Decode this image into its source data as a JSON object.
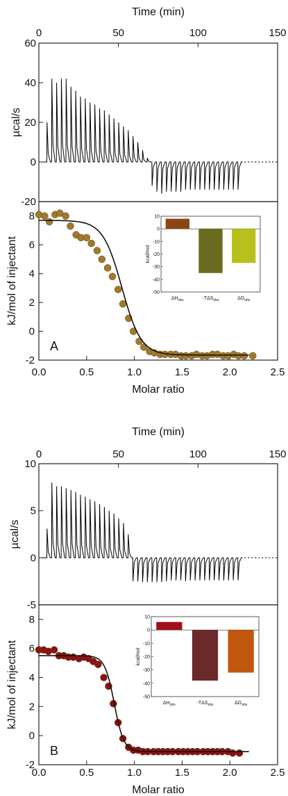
{
  "chart_data": [
    {
      "panel_label": "A",
      "thermogram": {
        "type": "line",
        "xlabel": "Time (min)",
        "ylabel": "µcal/s",
        "xlim": [
          0,
          150
        ],
        "ylim": [
          -20,
          60
        ],
        "xticks": [
          "0",
          "50",
          "100",
          "150"
        ],
        "yticks": [
          "-20",
          "0",
          "20",
          "40",
          "60"
        ],
        "injection_times_min": [
          5.0,
          8.0,
          11.0,
          14.0,
          17.0,
          20.0,
          23.0,
          26.0,
          29.0,
          32.0,
          35.0,
          38.0,
          41.0,
          44.0,
          47.0,
          50.0,
          53.0,
          56.0,
          59.0,
          62.0,
          65.0,
          68.0,
          71.0,
          74.0,
          77.0,
          80.0,
          83.0,
          86.0,
          89.0,
          92.0,
          95.0,
          98.0,
          101.0,
          104.0,
          107.0,
          110.0,
          113.0,
          116.0,
          119.0,
          122.0,
          125.0
        ],
        "peak_ucal_s": [
          20,
          42,
          40,
          42,
          42,
          38,
          36,
          33,
          32,
          30,
          29,
          27,
          26,
          24,
          22,
          20,
          18,
          16,
          13,
          10,
          6,
          2,
          -12,
          -15,
          -16,
          -15,
          -15,
          -15,
          -15,
          -14,
          -14,
          -14,
          -14,
          -14,
          -14,
          -14,
          -14,
          -14,
          -14,
          -14,
          -14
        ],
        "baseline": 0
      },
      "binding": {
        "type": "scatter",
        "xlabel": "Molar ratio",
        "ylabel": "kJ/mol of injectant",
        "xlim": [
          0.0,
          2.5
        ],
        "ylim": [
          -2,
          9
        ],
        "xticks": [
          "0.0",
          "0.5",
          "1.0",
          "1.5",
          "2.0",
          "2.5"
        ],
        "yticks": [
          "-2",
          "0",
          "2",
          "4",
          "6",
          "8"
        ],
        "marker_color": "#a07a2c",
        "x": [
          0.0,
          0.06,
          0.11,
          0.17,
          0.22,
          0.28,
          0.33,
          0.39,
          0.44,
          0.5,
          0.55,
          0.61,
          0.66,
          0.72,
          0.77,
          0.83,
          0.88,
          0.94,
          0.99,
          1.05,
          1.1,
          1.16,
          1.21,
          1.27,
          1.32,
          1.38,
          1.43,
          1.49,
          1.54,
          1.6,
          1.65,
          1.71,
          1.76,
          1.82,
          1.87,
          1.93,
          1.98,
          2.04,
          2.09,
          2.15,
          2.24
        ],
        "y": [
          8.1,
          8.0,
          7.6,
          8.1,
          8.2,
          8.0,
          7.3,
          6.7,
          6.5,
          6.5,
          6.1,
          5.6,
          5.0,
          4.4,
          3.8,
          2.9,
          1.9,
          0.9,
          0.0,
          -0.7,
          -1.1,
          -1.4,
          -1.5,
          -1.6,
          -1.6,
          -1.6,
          -1.6,
          -1.7,
          -1.7,
          -1.7,
          -1.6,
          -1.7,
          -1.7,
          -1.6,
          -1.6,
          -1.7,
          -1.7,
          -1.6,
          -1.7,
          -1.7,
          -1.7
        ],
        "fit": {
          "high": 7.7,
          "low": -1.65,
          "midpoint": 0.87,
          "width": 0.1
        }
      },
      "inset": {
        "type": "bar",
        "ylabel": "kcal/mol",
        "ylim": [
          -50,
          10
        ],
        "yticks": [
          "10",
          "0",
          "-10",
          "-20",
          "-30",
          "-40",
          "-50"
        ],
        "categories": [
          "ΔH",
          "-TΔS",
          "ΔG"
        ],
        "subscripts": [
          "obs",
          "obs",
          "obs"
        ],
        "values": [
          8,
          -35,
          -27
        ],
        "colors": [
          "#8b4513",
          "#6b6b1f",
          "#b8c01c"
        ]
      }
    },
    {
      "panel_label": "B",
      "thermogram": {
        "type": "line",
        "xlabel": "Time (min)",
        "ylabel": "µcal/s",
        "xlim": [
          0,
          150
        ],
        "ylim": [
          -5,
          10
        ],
        "xticks": [
          "0",
          "50",
          "100",
          "150"
        ],
        "yticks": [
          "-5",
          "0",
          "5",
          "10"
        ],
        "injection_times_min": [
          5.0,
          8.0,
          11.0,
          14.0,
          17.0,
          20.0,
          23.0,
          26.0,
          29.0,
          32.0,
          35.0,
          38.0,
          41.0,
          44.0,
          47.0,
          50.0,
          53.0,
          56.0,
          59.0,
          62.0,
          65.0,
          68.0,
          71.0,
          74.0,
          77.0,
          80.0,
          83.0,
          86.0,
          89.0,
          92.0,
          95.0,
          98.0,
          101.0,
          104.0,
          107.0,
          110.0,
          113.0,
          116.0,
          119.0,
          122.0,
          125.0
        ],
        "peak_ucal_s": [
          3.1,
          8.0,
          7.6,
          7.6,
          7.4,
          7.2,
          7.0,
          6.7,
          6.5,
          6.2,
          6.0,
          5.7,
          5.4,
          5.0,
          4.7,
          4.2,
          3.7,
          2.5,
          -2.5,
          -2.5,
          -2.6,
          -2.6,
          -2.6,
          -2.6,
          -2.6,
          -2.5,
          -2.4,
          -2.4,
          -2.4,
          -2.5,
          -2.4,
          -2.4,
          -2.4,
          -2.4,
          -2.4,
          -2.4,
          -2.4,
          -2.4,
          -2.4,
          -2.4,
          -2.4
        ],
        "baseline": 0
      },
      "binding": {
        "type": "scatter",
        "xlabel": "Molar ratio",
        "ylabel": "kJ/mol of injectant",
        "xlim": [
          0.0,
          2.5
        ],
        "ylim": [
          -2,
          9
        ],
        "xticks": [
          "0.0",
          "0.5",
          "1.0",
          "1.5",
          "2.0",
          "2.5"
        ],
        "yticks": [
          "-2",
          "0",
          "2",
          "4",
          "6",
          "8"
        ],
        "marker_color": "#8b1212",
        "x": [
          0.0,
          0.05,
          0.1,
          0.16,
          0.21,
          0.26,
          0.31,
          0.36,
          0.42,
          0.47,
          0.52,
          0.57,
          0.62,
          0.68,
          0.73,
          0.78,
          0.83,
          0.88,
          0.94,
          0.99,
          1.04,
          1.09,
          1.14,
          1.2,
          1.25,
          1.3,
          1.35,
          1.4,
          1.46,
          1.51,
          1.56,
          1.61,
          1.66,
          1.72,
          1.77,
          1.82,
          1.87,
          1.92,
          1.98,
          2.03,
          2.1
        ],
        "y": [
          5.9,
          5.9,
          5.8,
          5.9,
          5.5,
          5.5,
          5.4,
          5.4,
          5.3,
          5.4,
          5.3,
          5.1,
          4.9,
          4.0,
          3.4,
          2.2,
          0.9,
          -0.2,
          -0.8,
          -1.0,
          -1.0,
          -1.1,
          -1.1,
          -1.1,
          -1.1,
          -1.1,
          -1.1,
          -1.1,
          -1.1,
          -1.1,
          -1.1,
          -1.1,
          -1.1,
          -1.1,
          -1.1,
          -1.1,
          -1.1,
          -1.1,
          -1.1,
          -1.2,
          -1.2
        ],
        "fit": {
          "high": 5.5,
          "low": -1.1,
          "midpoint": 0.79,
          "width": 0.05
        }
      },
      "inset": {
        "type": "bar",
        "ylabel": "kcal/mol",
        "ylim": [
          -50,
          10
        ],
        "yticks": [
          "10",
          "0",
          "-10",
          "-20",
          "-30",
          "-40",
          "-50"
        ],
        "categories": [
          "ΔH",
          "-TΔS",
          "ΔG"
        ],
        "subscripts": [
          "obs",
          "obs",
          "obs"
        ],
        "values": [
          6,
          -38,
          -32
        ],
        "colors": [
          "#a0101a",
          "#6b2a2a",
          "#c2570f"
        ]
      }
    }
  ]
}
